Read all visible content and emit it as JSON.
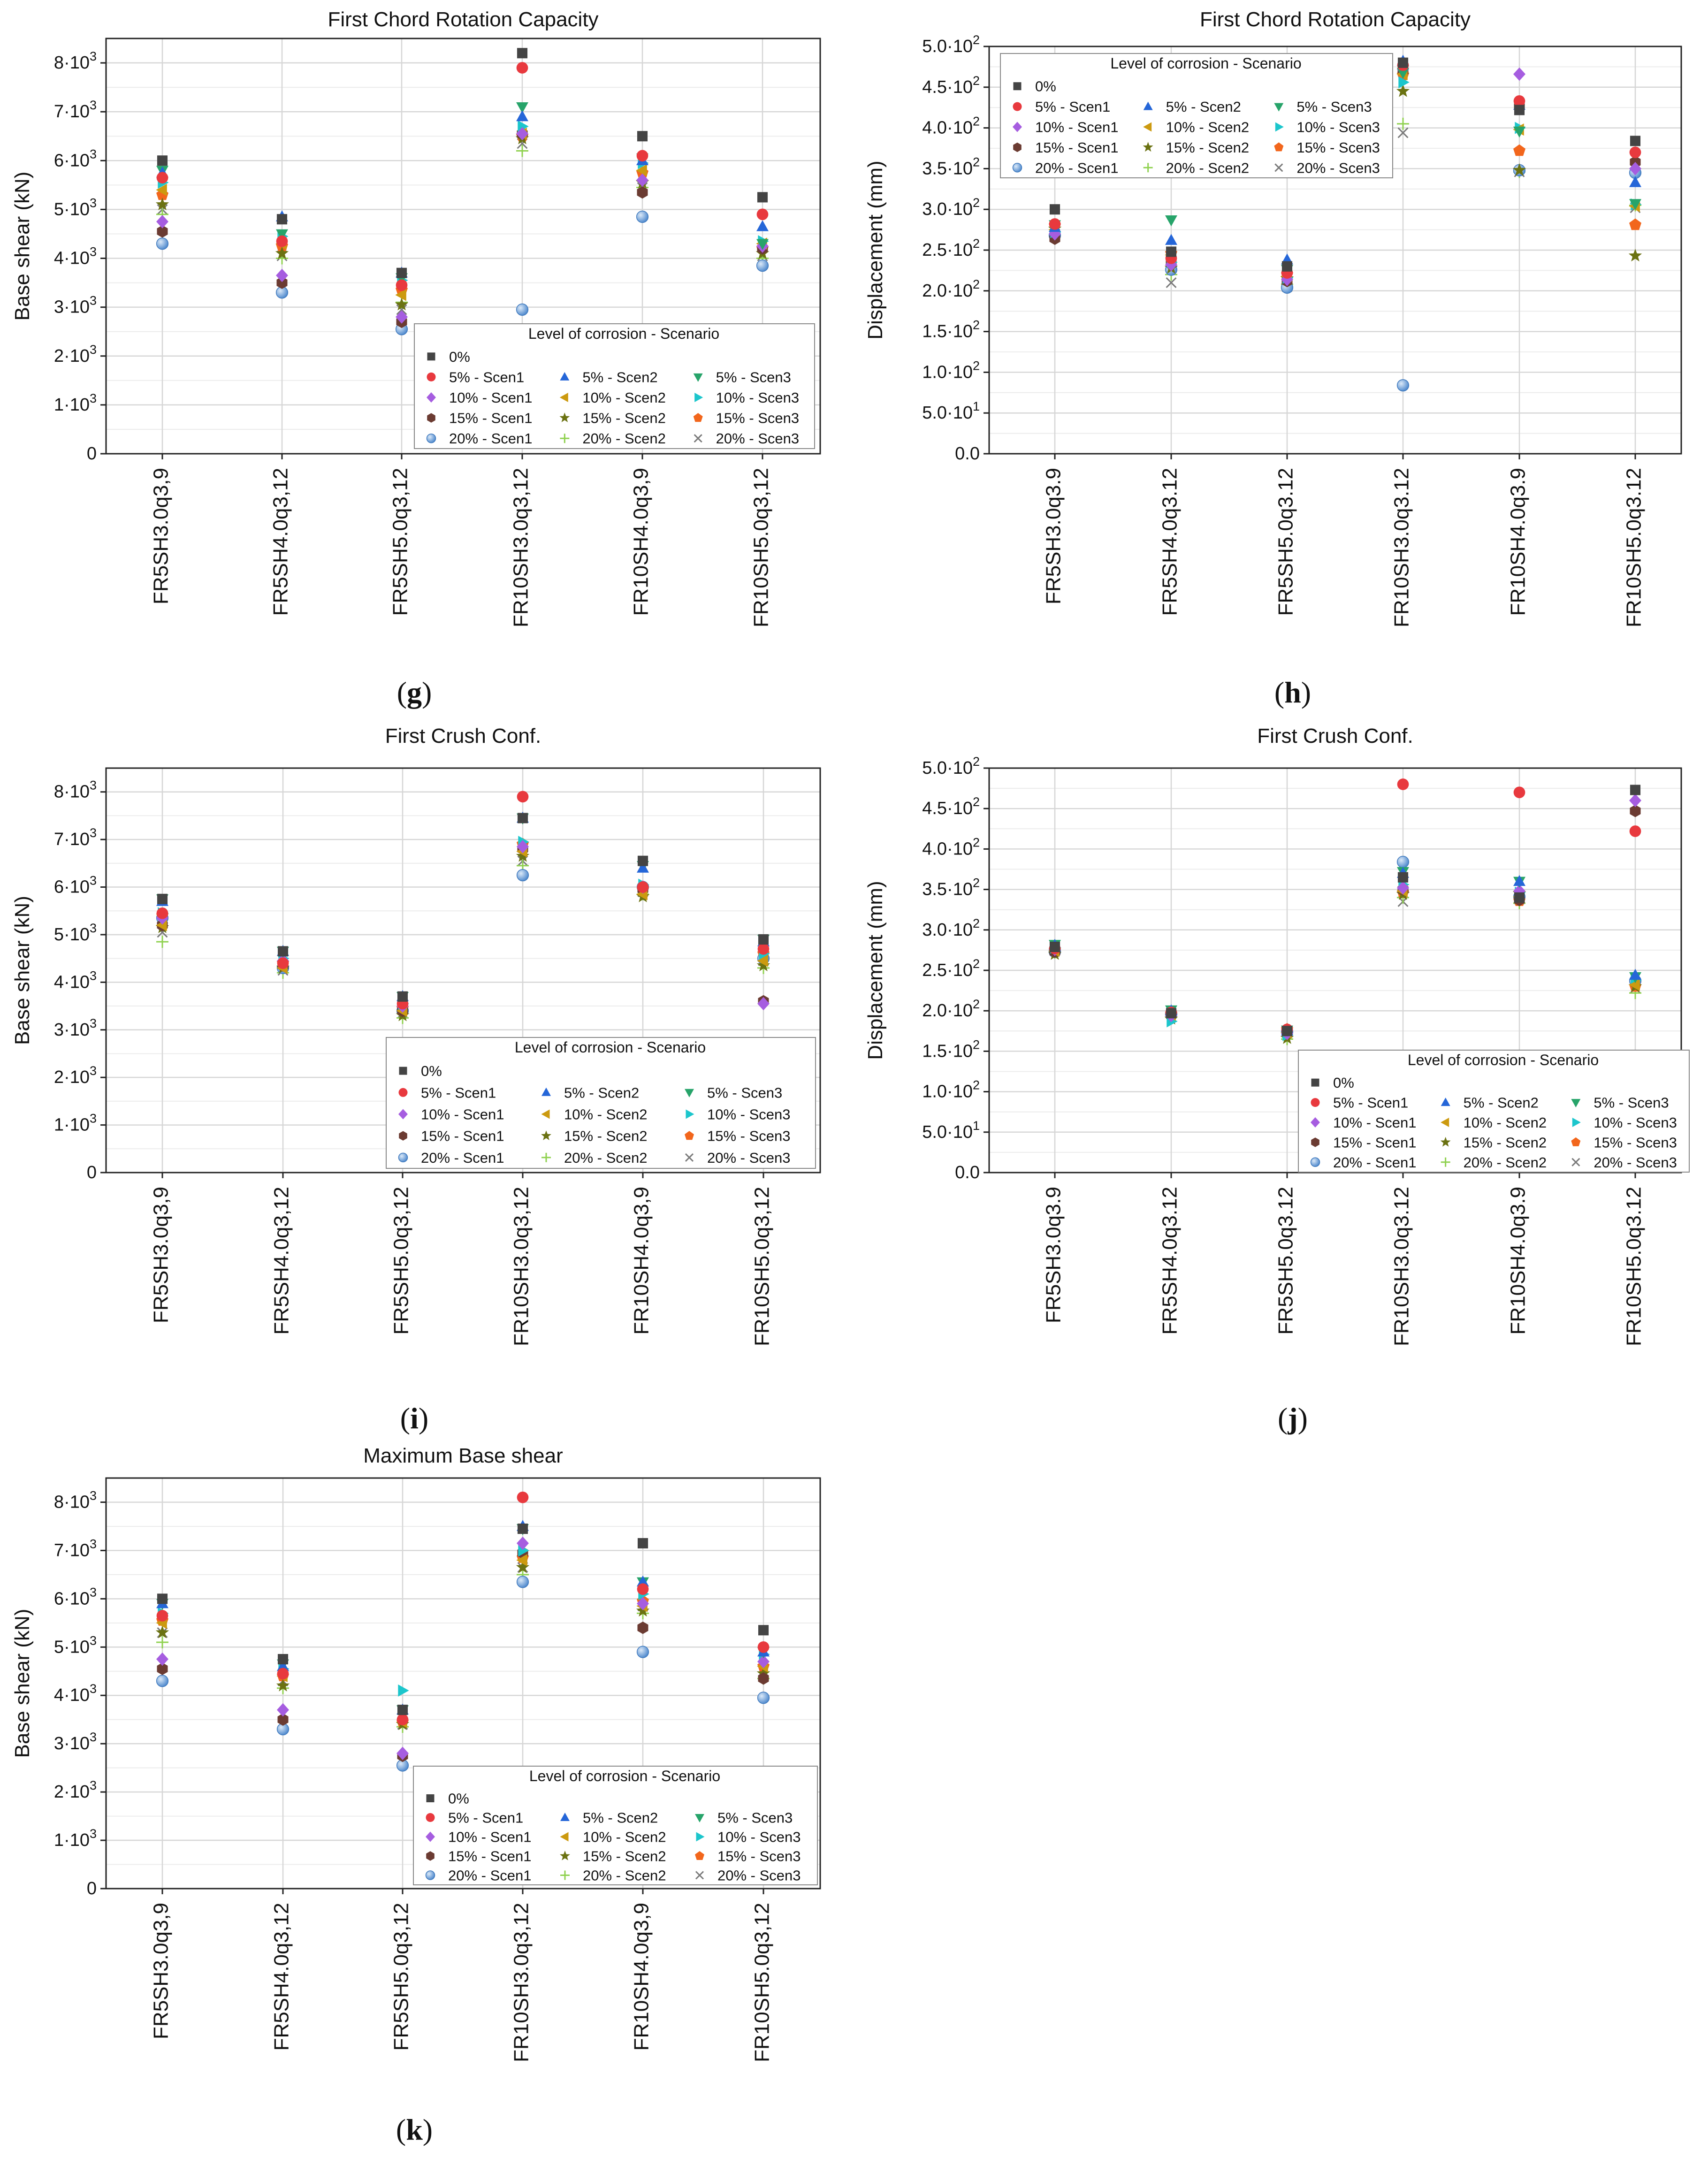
{
  "categories": [
    "FR5SH3.0q3,9",
    "FR5SH4.0q3,12",
    "FR5SH5.0q3,12",
    "FR10SH3.0q3,12",
    "FR10SH4.0q3,9",
    "FR10SH5.0q3,12"
  ],
  "categories_dot": [
    "FR5SH3.0q3.9",
    "FR5SH4.0q3.12",
    "FR5SH5.0q3.12",
    "FR10SH3.0q3.12",
    "FR10SH4.0q3.9",
    "FR10SH5.0q3.12"
  ],
  "shear_ticks": [
    {
      "v": 0,
      "mant": "0",
      "exp": ""
    },
    {
      "v": 1000,
      "mant": "1·10",
      "exp": "3"
    },
    {
      "v": 2000,
      "mant": "2·10",
      "exp": "3"
    },
    {
      "v": 3000,
      "mant": "3·10",
      "exp": "3"
    },
    {
      "v": 4000,
      "mant": "4·10",
      "exp": "3"
    },
    {
      "v": 5000,
      "mant": "5·10",
      "exp": "3"
    },
    {
      "v": 6000,
      "mant": "6·10",
      "exp": "3"
    },
    {
      "v": 7000,
      "mant": "7·10",
      "exp": "3"
    },
    {
      "v": 8000,
      "mant": "8·10",
      "exp": "3"
    }
  ],
  "disp_ticks": [
    {
      "v": 0,
      "mant": "0.0",
      "exp": ""
    },
    {
      "v": 50,
      "mant": "5.0·10",
      "exp": "1"
    },
    {
      "v": 100,
      "mant": "1.0·10",
      "exp": "2"
    },
    {
      "v": 150,
      "mant": "1.5·10",
      "exp": "2"
    },
    {
      "v": 200,
      "mant": "2.0·10",
      "exp": "2"
    },
    {
      "v": 250,
      "mant": "2.5·10",
      "exp": "2"
    },
    {
      "v": 300,
      "mant": "3.0·10",
      "exp": "2"
    },
    {
      "v": 350,
      "mant": "3.5·10",
      "exp": "2"
    },
    {
      "v": 400,
      "mant": "4.0·10",
      "exp": "2"
    },
    {
      "v": 450,
      "mant": "4.5·10",
      "exp": "2"
    },
    {
      "v": 500,
      "mant": "5.0·10",
      "exp": "2"
    }
  ],
  "legend": {
    "title": "Level of corrosion - Scenario",
    "entries": [
      {
        "key": "s0",
        "label": "0%"
      },
      {
        "key": "s5_1",
        "label": "5% - Scen1"
      },
      {
        "key": "s5_2",
        "label": "5% - Scen2"
      },
      {
        "key": "s5_3",
        "label": "5% - Scen3"
      },
      {
        "key": "s10_1",
        "label": "10% - Scen1"
      },
      {
        "key": "s10_2",
        "label": "10% - Scen2"
      },
      {
        "key": "s10_3",
        "label": "10% - Scen3"
      },
      {
        "key": "s15_1",
        "label": "15% - Scen1"
      },
      {
        "key": "s15_2",
        "label": "15% - Scen2"
      },
      {
        "key": "s15_3",
        "label": "15% - Scen3"
      },
      {
        "key": "s20_1",
        "label": "20% - Scen1"
      },
      {
        "key": "s20_2",
        "label": "20% - Scen2"
      },
      {
        "key": "s20_3",
        "label": "20% - Scen3"
      }
    ]
  },
  "series_style": {
    "s0": {
      "marker": "square",
      "color": "#444444"
    },
    "s5_1": {
      "marker": "circle",
      "color": "#e8393e"
    },
    "s5_2": {
      "marker": "triangle-up",
      "color": "#2566d8"
    },
    "s5_3": {
      "marker": "triangle-down",
      "color": "#27a46a"
    },
    "s10_1": {
      "marker": "diamond",
      "color": "#a65de0"
    },
    "s10_2": {
      "marker": "triangle-left",
      "color": "#cc9a10"
    },
    "s10_3": {
      "marker": "triangle-right",
      "color": "#1cc6cc"
    },
    "s15_1": {
      "marker": "hexagon",
      "color": "#6b3b32"
    },
    "s15_2": {
      "marker": "star",
      "color": "#6b7212"
    },
    "s15_3": {
      "marker": "pentagon",
      "color": "#f2661c"
    },
    "s20_1": {
      "marker": "circle-shaded",
      "color": "#5b95d6"
    },
    "s20_2": {
      "marker": "plus",
      "color": "#8fd14f"
    },
    "s20_3": {
      "marker": "cross",
      "color": "#7a7a7a"
    }
  },
  "chart_data": [
    {
      "id": "g",
      "panel_label": "g",
      "type": "scatter",
      "title": "First Chord Rotation Capacity",
      "ylabel": "Base shear (kN)",
      "xlabel": "",
      "ylim": [
        0,
        8500
      ],
      "tick_set": "shear",
      "categories_set": "comma",
      "legend_placement": "bottom-right",
      "series": {
        "s0": [
          6000,
          4800,
          3700,
          8200,
          6500,
          5250
        ],
        "s5_1": [
          5650,
          4350,
          3450,
          7900,
          6100,
          4900
        ],
        "s5_2": [
          5750,
          4850,
          3700,
          6900,
          6000,
          4650
        ],
        "s5_3": [
          5800,
          4500,
          3600,
          7100,
          6050,
          4300
        ],
        "s10_1": [
          4750,
          3650,
          2800,
          6550,
          5600,
          4250
        ],
        "s10_2": [
          5400,
          4300,
          3250,
          6550,
          5800,
          4300
        ],
        "s10_3": [
          5550,
          4450,
          3550,
          6700,
          5950,
          4350
        ],
        "s15_1": [
          4550,
          3500,
          2700,
          6550,
          5350,
          4200
        ],
        "s15_2": [
          5100,
          4100,
          3050,
          6450,
          5550,
          4100
        ],
        "s15_3": [
          5300,
          4250,
          3350,
          6500,
          5750,
          4200
        ],
        "s20_1": [
          4300,
          3300,
          2550,
          2950,
          4850,
          3850
        ],
        "s20_2": [
          4900,
          4000,
          3100,
          6200,
          5450,
          4000
        ],
        "s20_3": [
          5000,
          4050,
          2950,
          6350,
          5450,
          4050
        ]
      }
    },
    {
      "id": "h",
      "panel_label": "h",
      "type": "scatter",
      "title": "First Chord Rotation Capacity",
      "ylabel": "Displacement (mm)",
      "xlabel": "",
      "ylim": [
        0,
        500
      ],
      "tick_set": "disp",
      "categories_set": "dot",
      "legend_placement": "top-left",
      "series": {
        "s0": [
          300,
          248,
          230,
          480,
          422,
          384
        ],
        "s5_1": [
          282,
          240,
          222,
          477,
          433,
          370
        ],
        "s5_2": [
          278,
          262,
          238,
          482,
          428,
          333
        ],
        "s5_3": [
          281,
          287,
          226,
          468,
          396,
          307
        ],
        "s10_1": [
          270,
          232,
          214,
          472,
          466,
          350
        ],
        "s10_2": [
          275,
          244,
          218,
          466,
          398,
          304
        ],
        "s10_3": [
          272,
          235,
          216,
          456,
          400,
          306
        ],
        "s15_1": [
          264,
          234,
          212,
          470,
          426,
          358
        ],
        "s15_2": [
          276,
          228,
          215,
          445,
          348,
          243
        ],
        "s15_3": [
          280,
          246,
          220,
          465,
          372,
          281
        ],
        "s20_1": [
          268,
          226,
          204,
          84,
          348,
          345
        ],
        "s20_2": [
          268,
          220,
          208,
          405,
          346,
          305
        ],
        "s20_3": [
          270,
          210,
          205,
          394,
          346,
          302
        ]
      }
    },
    {
      "id": "i",
      "panel_label": "i",
      "type": "scatter",
      "title": "First Crush Conf.",
      "ylabel": "Base shear (kN)",
      "xlabel": "",
      "ylim": [
        0,
        8500
      ],
      "tick_set": "shear",
      "categories_set": "comma",
      "legend_placement": "bottom-right",
      "series": {
        "s0": [
          5750,
          4650,
          3700,
          7450,
          6550,
          4900
        ],
        "s5_1": [
          5450,
          4400,
          3550,
          7900,
          6000,
          4700
        ],
        "s5_2": [
          5700,
          4650,
          3700,
          7450,
          6400,
          4850
        ],
        "s5_3": [
          5750,
          4650,
          3700,
          7450,
          6450,
          4900
        ],
        "s10_1": [
          5350,
          4450,
          3500,
          6850,
          6000,
          3550
        ],
        "s10_2": [
          5200,
          4300,
          3400,
          6750,
          5850,
          4450
        ],
        "s10_3": [
          5450,
          4500,
          3550,
          6950,
          6050,
          4600
        ],
        "s15_1": [
          5200,
          4350,
          3400,
          6800,
          5950,
          3600
        ],
        "s15_2": [
          5150,
          4300,
          3300,
          6650,
          5800,
          4350
        ],
        "s15_3": [
          5400,
          4400,
          3450,
          6900,
          5950,
          4600
        ],
        "s20_1": [
          5350,
          4300,
          3400,
          6250,
          6000,
          4500
        ],
        "s20_2": [
          4850,
          4200,
          3250,
          6450,
          5850,
          4300
        ],
        "s20_3": [
          5050,
          4250,
          3350,
          6550,
          5900,
          4450
        ]
      }
    },
    {
      "id": "j",
      "panel_label": "j",
      "type": "scatter",
      "title": "First Crush Conf.",
      "ylabel": "Displacement (mm)",
      "xlabel": "",
      "ylim": [
        0,
        500
      ],
      "tick_set": "disp",
      "categories_set": "dot",
      "legend_placement": "bottom-right",
      "series": {
        "s0": [
          279,
          197,
          175,
          365,
          340,
          473
        ],
        "s5_1": [
          277,
          198,
          177,
          480,
          470,
          422
        ],
        "s5_2": [
          281,
          200,
          175,
          370,
          360,
          244
        ],
        "s5_3": [
          282,
          201,
          176,
          372,
          360,
          242
        ],
        "s10_1": [
          276,
          194,
          172,
          352,
          348,
          460
        ],
        "s10_2": [
          274,
          195,
          173,
          348,
          341,
          232
        ],
        "s10_3": [
          278,
          187,
          170,
          356,
          346,
          238
        ],
        "s15_1": [
          273,
          196,
          174,
          350,
          337,
          447
        ],
        "s15_2": [
          270,
          190,
          166,
          344,
          345,
          230
        ],
        "s15_3": [
          275,
          196,
          177,
          346,
          336,
          230
        ],
        "s20_1": [
          273,
          196,
          174,
          384,
          341,
          237
        ],
        "s20_2": [
          272,
          192,
          165,
          340,
          333,
          222
        ],
        "s20_3": [
          274,
          196,
          175,
          335,
          338,
          228
        ]
      }
    },
    {
      "id": "k",
      "panel_label": "k",
      "type": "scatter",
      "title": "Maximum Base shear",
      "ylabel": "Base shear (kN)",
      "xlabel": "",
      "ylim": [
        0,
        8500
      ],
      "tick_set": "shear",
      "categories_set": "comma",
      "legend_placement": "bottom-right",
      "series": {
        "s0": [
          6000,
          4750,
          3700,
          7450,
          7150,
          5350
        ],
        "s5_1": [
          5650,
          4450,
          3500,
          8100,
          6200,
          5000
        ],
        "s5_2": [
          5900,
          4600,
          3700,
          7500,
          6350,
          4900
        ],
        "s5_3": [
          5900,
          4650,
          3700,
          7450,
          6350,
          4900
        ],
        "s10_1": [
          4750,
          3700,
          2800,
          7150,
          5900,
          4700
        ],
        "s10_2": [
          5500,
          4400,
          3450,
          6800,
          5850,
          4600
        ],
        "s10_3": [
          5700,
          4550,
          4100,
          7000,
          6100,
          4850
        ],
        "s15_1": [
          4550,
          3500,
          2750,
          6950,
          5400,
          4350
        ],
        "s15_2": [
          5300,
          4200,
          3400,
          6650,
          5750,
          4450
        ],
        "s15_3": [
          5550,
          4400,
          3450,
          6850,
          5950,
          4600
        ],
        "s20_1": [
          4300,
          3300,
          2550,
          6350,
          4900,
          3950
        ],
        "s20_2": [
          5100,
          4150,
          3350,
          6500,
          5700,
          4350
        ],
        "s20_3": [
          5300,
          4300,
          3400,
          6650,
          5850,
          4500
        ]
      }
    }
  ]
}
